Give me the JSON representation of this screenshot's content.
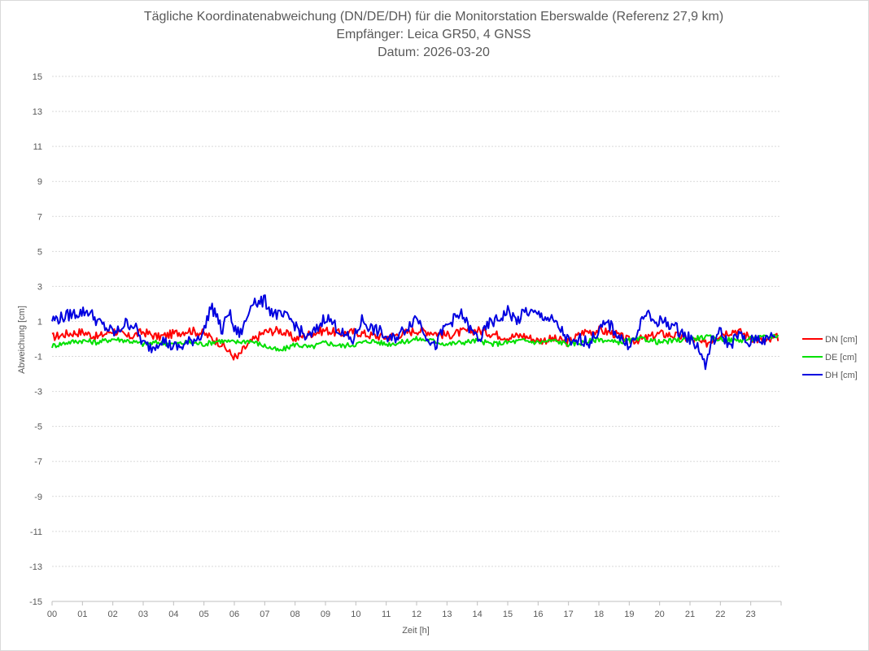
{
  "chart_data": {
    "type": "line",
    "title": "Tägliche Koordinatenabweichung (DN/DE/DH) für die Monitorstation Eberswalde (Referenz 27,9 km)",
    "subtitle_1": "Empfänger: Leica GR50, 4 GNSS",
    "subtitle_2": "Datum: 2026-03-20",
    "xlabel": "Zeit [h]",
    "ylabel": "Abweichung [cm]",
    "xlim": [
      0,
      24
    ],
    "ylim": [
      -15,
      15
    ],
    "x_ticks": [
      "00",
      "01",
      "02",
      "03",
      "04",
      "05",
      "06",
      "07",
      "08",
      "09",
      "10",
      "11",
      "12",
      "13",
      "14",
      "15",
      "16",
      "17",
      "18",
      "19",
      "20",
      "21",
      "22",
      "23"
    ],
    "y_ticks": [
      "15",
      "13",
      "11",
      "9",
      "7",
      "5",
      "3",
      "1",
      "-1",
      "-3",
      "-5",
      "-7",
      "-9",
      "-11",
      "-13",
      "-15"
    ],
    "grid": "horizontal-dotted",
    "legend_position": "right",
    "series": [
      {
        "name": "DN [cm]",
        "color": "#ff0000",
        "x": [
          0,
          0.5,
          1,
          1.5,
          2,
          2.5,
          3,
          3.5,
          4,
          4.5,
          5,
          5.3,
          5.6,
          5.9,
          6.1,
          6.3,
          6.6,
          7,
          7.5,
          8,
          8.5,
          9,
          9.5,
          10,
          10.5,
          11,
          11.5,
          12,
          12.5,
          13,
          13.5,
          14,
          14.5,
          15,
          15.5,
          16,
          16.5,
          17,
          17.5,
          18,
          18.5,
          19,
          19.5,
          20,
          20.5,
          21,
          21.5,
          22,
          22.5,
          23,
          23.5,
          23.9
        ],
        "values": [
          0.1,
          0.3,
          0.4,
          0.1,
          0.5,
          0.1,
          0.4,
          0.1,
          0.3,
          0.5,
          0.3,
          0.0,
          -0.3,
          -0.9,
          -1.1,
          -0.6,
          -0.1,
          0.4,
          0.5,
          0.0,
          0.3,
          0.5,
          0.3,
          0.4,
          0.2,
          0.1,
          0.3,
          0.5,
          0.4,
          0.2,
          0.4,
          0.5,
          0.3,
          0.1,
          0.2,
          -0.1,
          0.0,
          -0.2,
          0.4,
          0.5,
          0.3,
          -0.1,
          0.0,
          0.3,
          0.2,
          0.0,
          -0.3,
          0.3,
          0.5,
          0.1,
          -0.2,
          0.1
        ]
      },
      {
        "name": "DE [cm]",
        "color": "#00e000",
        "x": [
          0,
          0.5,
          1,
          1.5,
          2,
          2.5,
          3,
          3.5,
          4,
          4.5,
          5,
          5.5,
          6,
          6.5,
          7,
          7.5,
          8,
          8.5,
          9,
          9.5,
          10,
          10.5,
          11,
          11.5,
          12,
          12.5,
          13,
          13.5,
          14,
          14.5,
          15,
          15.5,
          16,
          16.5,
          17,
          17.5,
          18,
          18.5,
          19,
          19.5,
          20,
          20.5,
          21,
          21.5,
          22,
          22.5,
          23,
          23.5,
          23.9
        ],
        "values": [
          -0.4,
          -0.2,
          -0.1,
          -0.2,
          0.0,
          -0.1,
          -0.3,
          -0.2,
          -0.3,
          -0.2,
          -0.3,
          -0.1,
          -0.2,
          -0.1,
          -0.4,
          -0.7,
          -0.3,
          -0.5,
          -0.2,
          -0.4,
          -0.3,
          -0.1,
          -0.3,
          -0.2,
          0.0,
          -0.1,
          -0.3,
          -0.2,
          -0.1,
          -0.3,
          -0.2,
          -0.1,
          -0.2,
          -0.1,
          -0.3,
          -0.2,
          0.0,
          -0.2,
          -0.1,
          0.0,
          -0.2,
          -0.1,
          0.0,
          0.1,
          0.0,
          -0.1,
          0.0,
          0.1,
          0.2
        ]
      },
      {
        "name": "DH [cm]",
        "color": "#0000e0",
        "x": [
          0,
          0.3,
          0.6,
          0.9,
          1.2,
          1.5,
          1.8,
          2.1,
          2.4,
          2.7,
          3,
          3.3,
          3.6,
          3.9,
          4.2,
          4.5,
          4.8,
          5.0,
          5.2,
          5.4,
          5.6,
          5.8,
          6.0,
          6.2,
          6.4,
          6.6,
          6.8,
          7.0,
          7.2,
          7.5,
          7.8,
          8.1,
          8.4,
          8.7,
          9.0,
          9.3,
          9.6,
          9.9,
          10.2,
          10.5,
          10.8,
          11.1,
          11.4,
          11.7,
          12.0,
          12.3,
          12.6,
          12.9,
          13.2,
          13.5,
          13.8,
          14.1,
          14.4,
          14.7,
          15.0,
          15.3,
          15.6,
          15.9,
          16.2,
          16.5,
          16.8,
          17.1,
          17.4,
          17.7,
          18.0,
          18.3,
          18.6,
          18.9,
          19.2,
          19.5,
          19.8,
          20.1,
          20.4,
          20.7,
          21.0,
          21.3,
          21.5,
          21.7,
          22.0,
          22.3,
          22.6,
          22.9,
          23.2,
          23.5,
          23.8
        ],
        "values": [
          1.1,
          1.2,
          1.4,
          1.5,
          1.6,
          1.0,
          0.6,
          0.3,
          0.9,
          0.8,
          -0.3,
          -0.5,
          0.0,
          -0.4,
          -0.5,
          -0.2,
          0.1,
          0.4,
          1.8,
          1.5,
          0.3,
          1.7,
          0.5,
          0.3,
          1.1,
          2.3,
          2.0,
          2.2,
          1.6,
          1.3,
          1.2,
          0.6,
          0.0,
          0.5,
          1.3,
          0.8,
          0.2,
          -0.1,
          1.1,
          0.6,
          0.4,
          -0.1,
          0.2,
          0.7,
          1.3,
          0.3,
          -0.5,
          0.6,
          1.1,
          1.4,
          0.4,
          0.0,
          0.9,
          1.1,
          1.6,
          1.0,
          1.6,
          1.4,
          1.3,
          1.0,
          0.4,
          -0.4,
          0.0,
          -0.2,
          0.5,
          0.9,
          0.3,
          -0.3,
          -0.1,
          1.5,
          1.0,
          1.0,
          0.8,
          0.4,
          0.0,
          -0.5,
          -1.6,
          -0.2,
          0.4,
          -0.4,
          0.3,
          -0.3,
          0.1,
          -0.1,
          0.3
        ]
      }
    ]
  }
}
